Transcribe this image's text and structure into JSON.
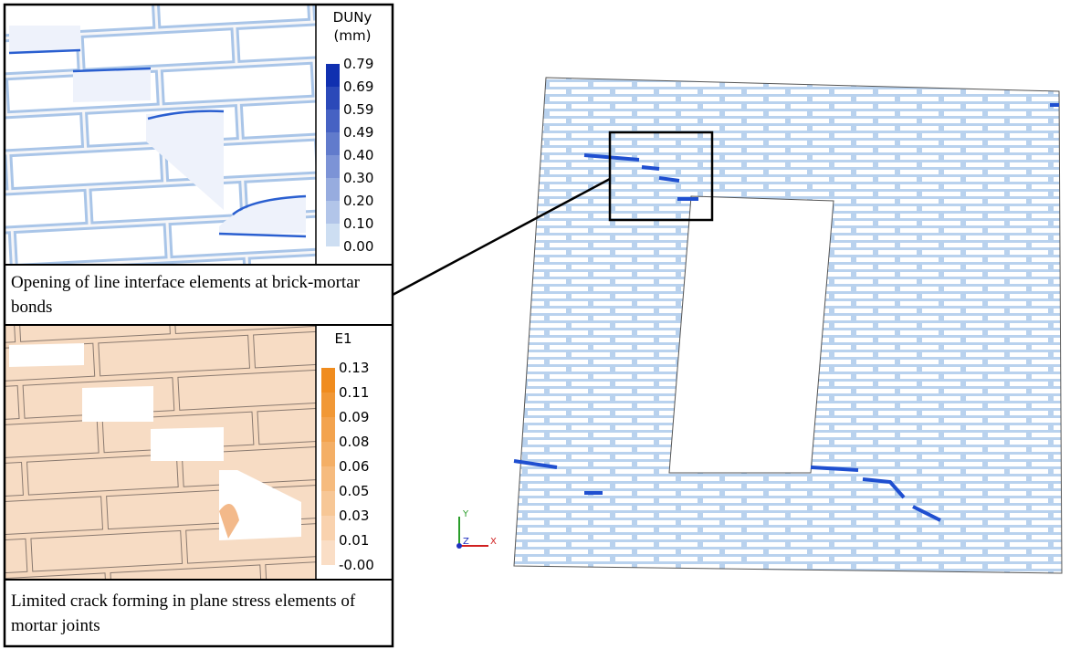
{
  "top_panel": {
    "legend": {
      "title": [
        "DUNy",
        "(mm)"
      ],
      "labels": [
        "0.79",
        "0.69",
        "0.59",
        "0.49",
        "0.40",
        "0.30",
        "0.20",
        "0.10",
        "0.00"
      ]
    },
    "caption": "Opening of line interface elements at brick-mortar bonds"
  },
  "bottom_panel": {
    "legend": {
      "title": "E1",
      "labels": [
        "0.13",
        "0.11",
        "0.09",
        "0.08",
        "0.06",
        "0.05",
        "0.03",
        "0.01",
        "-0.00"
      ]
    },
    "caption": "Limited crack forming in plane stress elements of mortar joints"
  },
  "axes_triad": {
    "y": "Y",
    "z": "Z",
    "x": "X"
  }
}
